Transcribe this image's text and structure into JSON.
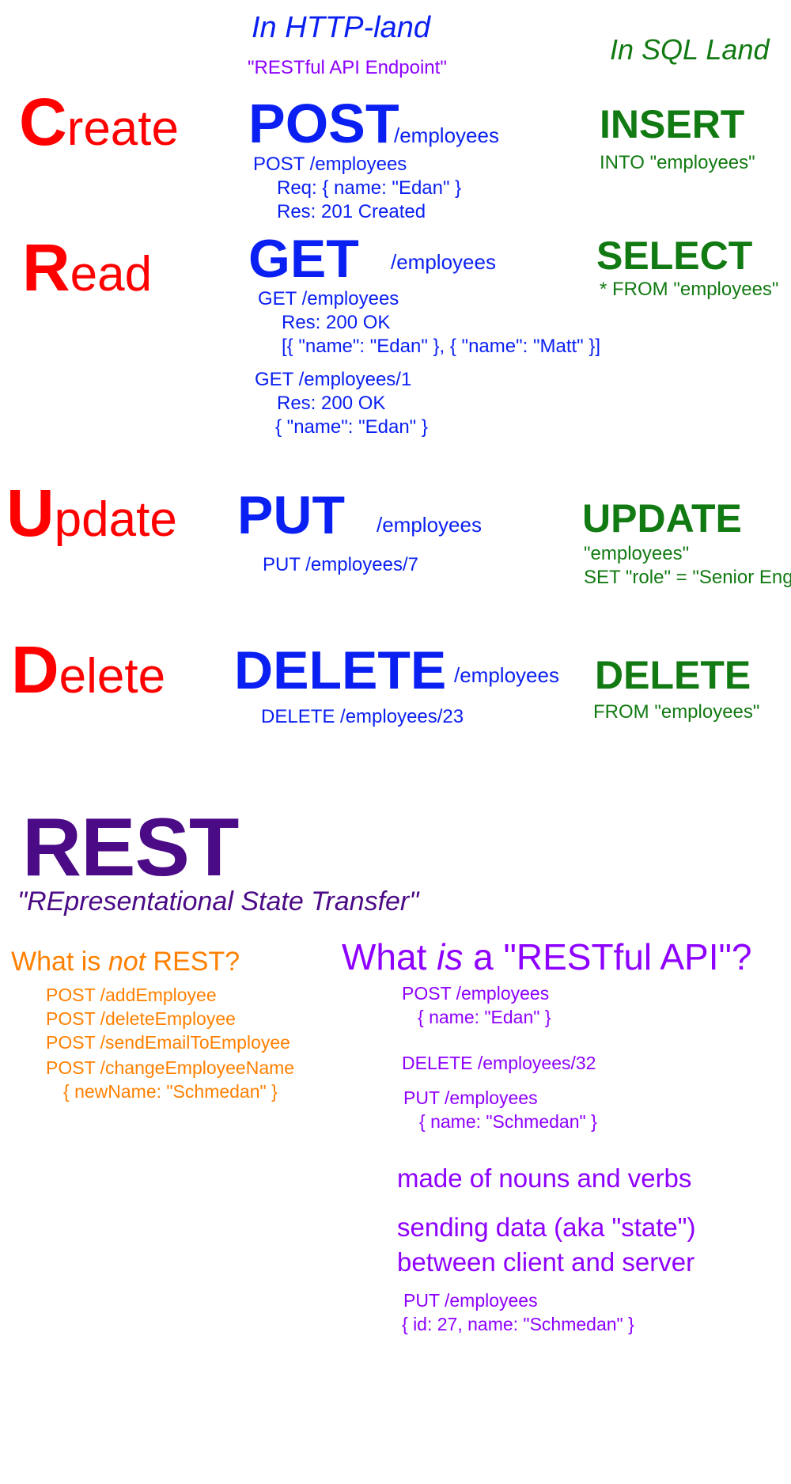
{
  "headers": {
    "http_title": "In HTTP-land",
    "http_subtitle": "\"RESTful API Endpoint\"",
    "sql_title": "In SQL Land"
  },
  "create": {
    "initial": "C",
    "rest": "reate",
    "verb": "POST",
    "path": "/employees",
    "ex1": "POST /employees",
    "ex2": "Req: { name: \"Edan\" }",
    "ex3": "Res: 201 Created",
    "sql_kw": "INSERT",
    "sql_rest": "INTO \"employees\""
  },
  "read": {
    "initial": "R",
    "rest": "ead",
    "verb": "GET",
    "path": "/employees",
    "ex1": "GET /employees",
    "ex2": "Res: 200 OK",
    "ex3": "[{ \"name\": \"Edan\" }, { \"name\": \"Matt\" }]",
    "ex4": "GET /employees/1",
    "ex5": "Res: 200 OK",
    "ex6": "{ \"name\": \"Edan\" }",
    "sql_kw": "SELECT",
    "sql_rest": "* FROM \"employees\""
  },
  "update": {
    "initial": "U",
    "rest": "pdate",
    "verb": "PUT",
    "path": "/employees",
    "ex1": "PUT /employees/7",
    "sql_kw": "UPDATE",
    "sql_rest1": "\"employees\"",
    "sql_rest2": "SET \"role\" = \"Senior Eng"
  },
  "delete": {
    "initial": "D",
    "rest": "elete",
    "verb": "DELETE",
    "path": "/employees",
    "ex1": "DELETE /employees/23",
    "sql_kw": "DELETE",
    "sql_rest": "FROM \"employees\""
  },
  "rest": {
    "title": "REST",
    "subtitle": "\"REpresentational State Transfer\""
  },
  "not_rest": {
    "title_pre": "What is ",
    "title_em": "not",
    "title_post": " REST?",
    "items": [
      "POST /addEmployee",
      "POST /deleteEmployee",
      "POST /sendEmailToEmployee",
      "POST /changeEmployeeName",
      "{ newName: \"Schmedan\" }"
    ]
  },
  "is_rest": {
    "title_pre": "What ",
    "title_em": "is",
    "title_post": " a \"RESTful API\"?",
    "ex1a": "POST /employees",
    "ex1b": "{ name: \"Edan\" }",
    "ex2": "DELETE /employees/32",
    "ex3a": "PUT /employees",
    "ex3b": "{ name: \"Schmedan\" }",
    "note1": "made of nouns and verbs",
    "note2a": "sending data (aka \"state\")",
    "note2b": "between client and server",
    "ex4a": "PUT /employees",
    "ex4b": "{ id: 27, name: \"Schmedan\" }"
  },
  "colors": {
    "crud": "#ff0000",
    "http": "#0a1ff2",
    "sql": "#127a12",
    "purple": "#8e00ff",
    "rest": "#4b0a86",
    "not_rest": "#ff8000"
  }
}
